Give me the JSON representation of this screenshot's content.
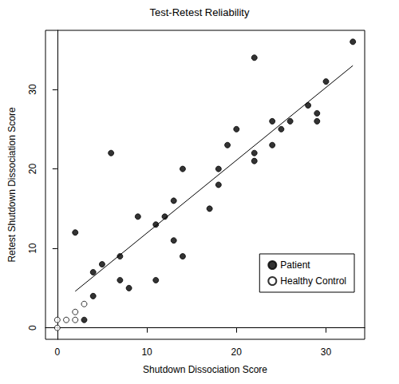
{
  "chart_data": {
    "type": "scatter",
    "title": "Test-Retest Reliability",
    "x_label": "Shutdown Dissociation Score",
    "y_label": "Retest Shutdown Dissociation Score",
    "xlim": [
      -1.32,
      34.32
    ],
    "ylim": [
      -1.44,
      37.44
    ],
    "xticks": [
      0,
      10,
      20,
      30
    ],
    "yticks": [
      0,
      10,
      20,
      30
    ],
    "grid": false,
    "legend": "lower right",
    "series": [
      {
        "name": "Patient",
        "type": "scatter",
        "marker": "circle",
        "color": "#000000",
        "x": [
          2,
          3,
          4,
          4,
          5,
          6,
          7,
          7,
          8,
          9,
          11,
          11,
          12,
          13,
          13,
          14,
          14,
          17,
          18,
          18,
          19,
          20,
          22,
          22,
          22,
          24,
          24,
          25,
          26,
          28,
          29,
          29,
          30,
          33
        ],
        "values": [
          12,
          1,
          7,
          4,
          8,
          22,
          9,
          6,
          5,
          14,
          13,
          6,
          14,
          16,
          11,
          20,
          9,
          15,
          20,
          18,
          23,
          25,
          34,
          22,
          21,
          26,
          23,
          25,
          26,
          28,
          27,
          26,
          31,
          36
        ]
      },
      {
        "name": "Healthy Control",
        "type": "scatter",
        "marker": "open circle",
        "color": "#000000",
        "x": [
          0,
          0,
          1,
          2,
          2,
          3
        ],
        "values": [
          0,
          1,
          1,
          1,
          2,
          3
        ]
      },
      {
        "type": "line",
        "line_style": "solid",
        "color": "#000000",
        "x": [
          2,
          33
        ],
        "values": [
          4.6,
          33
        ]
      }
    ]
  }
}
